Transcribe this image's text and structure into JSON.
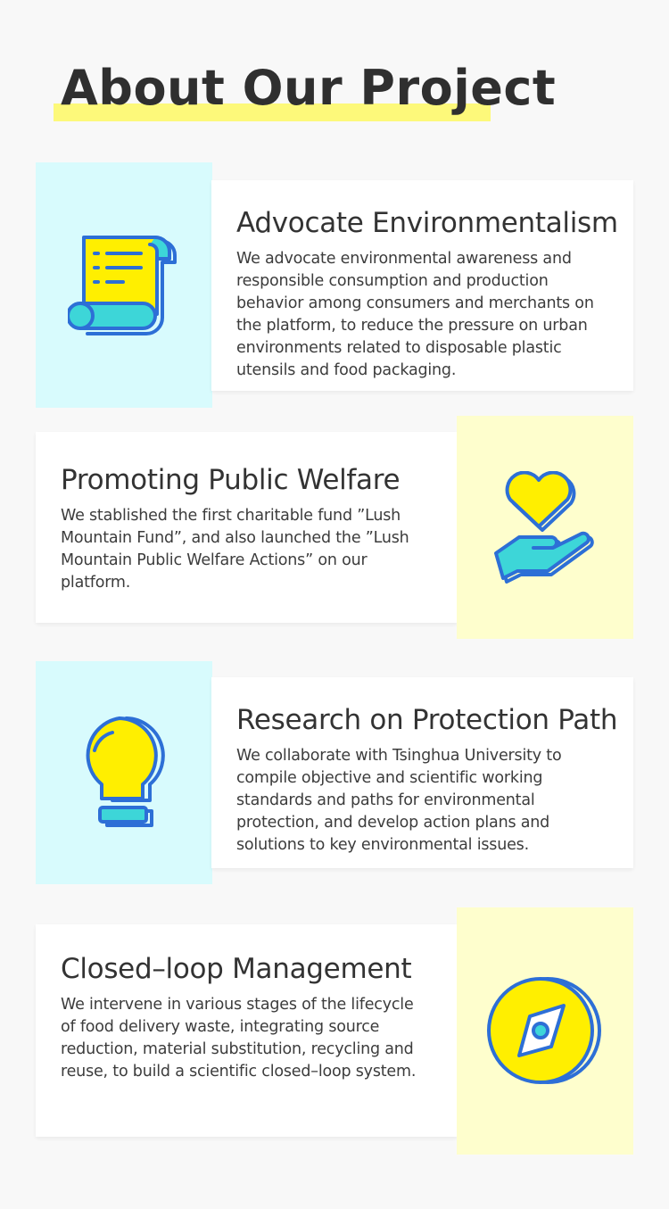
{
  "page": {
    "title": "About Our Project"
  },
  "sections": [
    {
      "title": "Advocate Environmentalism",
      "body": "We advocate environmental awareness and responsible consumption and production behavior among consumers and merchants on the platform, to reduce the pressure on urban environments related to disposable plastic utensils and food packaging.",
      "icon": "scroll-icon"
    },
    {
      "title": "Promoting Public Welfare",
      "body": "We stablished the first charitable fund ”Lush Mountain Fund”, and also launched the ”Lush Mountain Public Welfare Actions” on our platform.",
      "icon": "heart-hand-icon"
    },
    {
      "title": "Research on Protection Path",
      "body": "We collaborate with Tsinghua University to compile objective and scientific working standards and paths for environmental protection, and develop action plans and solutions to key environmental issues.",
      "icon": "lightbulb-icon"
    },
    {
      "title": "Closed–loop Management",
      "body": "We intervene in various stages of the lifecycle of food delivery waste, integrating source reduction, material substitution, recycling and reuse, to build a scientific closed–loop system.",
      "icon": "compass-icon"
    }
  ],
  "colors": {
    "highlight": "#fdf97a",
    "tile_cyan": "#d8fbfd",
    "tile_yellow": "#fefecd",
    "icon_yellow": "#ffef00",
    "icon_teal": "#3dd6d8",
    "icon_blue": "#2d6fd6"
  }
}
